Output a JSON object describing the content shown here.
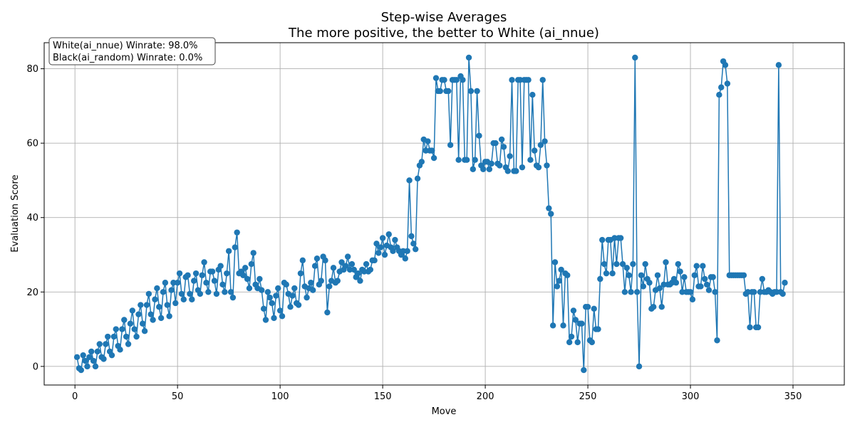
{
  "chart_data": {
    "type": "line",
    "title": "Step-wise Averages",
    "subtitle": "The more positive, the better to White (ai_nnue)",
    "xlabel": "Move",
    "ylabel": "Evaluation Score",
    "xlim": [
      -15,
      375
    ],
    "ylim": [
      -5,
      87
    ],
    "xticks": [
      0,
      50,
      100,
      150,
      200,
      250,
      300,
      350
    ],
    "yticks": [
      0,
      20,
      40,
      60,
      80
    ],
    "grid": true,
    "annotation": [
      "White(ai_nnue) Winrate: 98.0%",
      "Black(ai_random) Winrate: 0.0%"
    ],
    "annotation_placement": "top-left",
    "colors": {
      "line": "#1f77b4",
      "grid": "#b0b0b0",
      "axes": "#000000"
    },
    "series": [
      {
        "values": [
          2.5,
          -0.5,
          -1,
          3,
          1.5,
          0,
          2.5,
          4,
          1.5,
          0,
          4,
          6,
          2.5,
          2,
          6,
          8,
          4,
          3,
          8,
          10,
          5.5,
          4.5,
          10,
          12.5,
          8,
          6,
          11.5,
          15,
          10,
          8,
          14,
          16.5,
          11.5,
          9.5,
          16.5,
          19.5,
          14,
          12.5,
          18,
          21,
          16,
          13,
          20,
          22.5,
          16.5,
          13.5,
          20.5,
          22.5,
          17,
          22.5,
          25,
          19.5,
          18,
          24,
          24.5,
          19.5,
          18,
          23,
          25,
          20.5,
          19.5,
          24.5,
          28,
          22.5,
          20,
          25.5,
          25.5,
          23,
          19.5,
          26,
          27,
          22,
          20,
          25,
          31,
          20,
          18.5,
          32,
          36,
          25,
          25.5,
          24.5,
          26.5,
          23.5,
          21,
          27.5,
          30.5,
          22,
          21,
          23.5,
          20.5,
          15.5,
          12.5,
          20,
          18.5,
          17,
          13,
          19,
          21,
          15,
          13.5,
          22.5,
          22,
          19.5,
          16,
          19,
          21,
          17,
          16.5,
          25,
          28.5,
          21.5,
          18.5,
          21,
          22.5,
          20.5,
          27,
          29,
          22,
          23,
          29.5,
          28.5,
          14.5,
          21.5,
          23,
          26.5,
          22.5,
          23,
          25.5,
          28,
          26,
          27,
          29.5,
          26,
          27.5,
          26,
          24,
          25,
          23,
          26,
          25.5,
          27.5,
          25.5,
          26,
          28.5,
          28.5,
          33,
          30.5,
          32,
          34.5,
          30,
          32.5,
          35.5,
          32,
          31,
          34,
          32,
          31,
          30,
          31,
          29,
          31,
          50,
          35,
          33,
          31.5,
          50.5,
          54,
          55,
          61,
          58,
          60.5,
          58,
          58,
          56,
          77.5,
          74,
          74,
          77,
          77,
          74,
          74,
          59.5,
          77,
          77,
          77,
          55.5,
          78,
          77,
          55.5,
          55.5,
          83,
          74,
          53,
          55.5,
          74,
          62,
          54,
          53,
          55,
          55,
          53,
          54.5,
          60,
          60,
          54.5,
          54,
          61,
          59,
          53.5,
          52.5,
          56.5,
          77,
          52.5,
          52.5,
          77,
          77,
          53.5,
          77,
          77,
          77,
          55.5,
          73,
          58,
          54,
          53.5,
          59.5,
          77,
          60.5,
          54,
          42.5,
          41,
          11,
          28,
          21.5,
          23,
          26,
          11,
          25,
          24.5,
          6.5,
          8,
          15,
          12.5,
          6.5,
          11.5,
          11.5,
          -1,
          16,
          16,
          7,
          6.5,
          15.5,
          10,
          10,
          23.5,
          34,
          27.5,
          25,
          34,
          34,
          25,
          34.5,
          27.5,
          34.5,
          34.5,
          27.5,
          20,
          26.5,
          24.5,
          20,
          27.5,
          83,
          20,
          0,
          24.5,
          21.5,
          27.5,
          23.5,
          22.5,
          15.5,
          16,
          20.5,
          24.5,
          21,
          16,
          22,
          28,
          22,
          22,
          22.5,
          23.5,
          22.5,
          27.5,
          25.5,
          20,
          24,
          20,
          20,
          20,
          18,
          24.5,
          27,
          21.5,
          21.5,
          27,
          23.5,
          22,
          20.5,
          24,
          24,
          20,
          7,
          73,
          75,
          82,
          81,
          76,
          24.5,
          24.5,
          24.5,
          24.5,
          24.5,
          24.5,
          24.5,
          24.5,
          19.5,
          20,
          10.5,
          20,
          20,
          10.5,
          10.5,
          20,
          23.5,
          20,
          20,
          20.5,
          20,
          19.5,
          20,
          20,
          81,
          20,
          19.5,
          22.5
        ]
      }
    ]
  }
}
